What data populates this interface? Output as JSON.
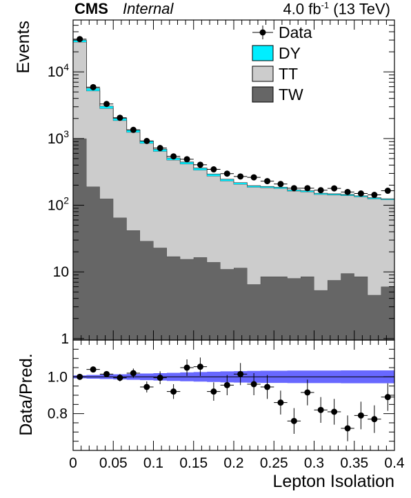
{
  "header": {
    "experiment": "CMS",
    "status": "Internal",
    "lumi_value": "4.0 fb",
    "lumi_exp": "-1",
    "energy": "(13 TeV)"
  },
  "chart_data": [
    {
      "type": "bar",
      "stacked": true,
      "y_scale": "log",
      "ylabel": "Events",
      "xlim": [
        0,
        0.4
      ],
      "ylim": [
        0.95,
        60000
      ],
      "ytick_labels": [
        "1",
        "10",
        "10^2",
        "10^3",
        "10^4"
      ],
      "bin_edges": [
        0,
        0.0167,
        0.0333,
        0.05,
        0.0667,
        0.0833,
        0.1,
        0.1167,
        0.1333,
        0.15,
        0.1667,
        0.1833,
        0.2,
        0.2167,
        0.2333,
        0.25,
        0.2667,
        0.2833,
        0.3,
        0.3167,
        0.3333,
        0.35,
        0.3667,
        0.3833,
        0.4
      ],
      "series": [
        {
          "name": "TW",
          "color": "#666666",
          "values": [
            1000,
            190,
            125,
            65,
            42,
            29,
            23,
            17,
            15.5,
            16.5,
            14,
            11,
            11.5,
            6.5,
            8.5,
            8.5,
            8,
            8.5,
            5.3,
            7.5,
            9.5,
            8.5,
            4.5,
            6
          ]
        },
        {
          "name": "TT",
          "color": "#cccccc",
          "values": [
            27000,
            5000,
            2700,
            1800,
            1200,
            820,
            620,
            460,
            400,
            320,
            260,
            220,
            195,
            180,
            175,
            170,
            155,
            150,
            140,
            135,
            130,
            125,
            120,
            115
          ]
        },
        {
          "name": "DY",
          "color": "#00eeff",
          "values": [
            2000,
            500,
            250,
            150,
            100,
            70,
            50,
            35,
            30,
            25,
            20,
            15,
            12,
            10,
            8,
            8,
            7,
            7,
            6,
            6,
            6,
            5,
            5,
            4
          ]
        }
      ],
      "data": {
        "name": "Data",
        "x": [
          0.0083,
          0.025,
          0.0417,
          0.0583,
          0.075,
          0.0917,
          0.1083,
          0.125,
          0.1417,
          0.1583,
          0.175,
          0.1917,
          0.2083,
          0.225,
          0.2417,
          0.2583,
          0.275,
          0.2917,
          0.3083,
          0.325,
          0.3417,
          0.3583,
          0.375,
          0.3917
        ],
        "y": [
          31000,
          5900,
          3300,
          2050,
          1350,
          920,
          720,
          540,
          490,
          405,
          345,
          298,
          270,
          262,
          230,
          208,
          180,
          180,
          168,
          179,
          158,
          150,
          143,
          165
        ]
      },
      "legend": [
        "Data",
        "DY",
        "TT",
        "TW"
      ],
      "legend_position": "top-right"
    },
    {
      "type": "scatter",
      "ylabel": "Data/Pred.",
      "xlabel": "Lepton Isolation",
      "xlim": [
        0,
        0.4
      ],
      "ylim": [
        0.6,
        1.2
      ],
      "xtick_labels": [
        "0",
        "0.05",
        "0.1",
        "0.15",
        "0.2",
        "0.25",
        "0.3",
        "0.35",
        "0.4"
      ],
      "ytick_labels": [
        "0.8",
        "1.0"
      ],
      "x": [
        0.0083,
        0.025,
        0.0417,
        0.0583,
        0.075,
        0.0917,
        0.1083,
        0.125,
        0.1417,
        0.1583,
        0.175,
        0.1917,
        0.2083,
        0.225,
        0.2417,
        0.2583,
        0.275,
        0.2917,
        0.3083,
        0.325,
        0.3417,
        0.3583,
        0.375,
        0.3917
      ],
      "ratio": [
        1.0,
        1.04,
        1.015,
        0.995,
        1.02,
        0.945,
        0.995,
        0.92,
        1.05,
        1.055,
        0.92,
        0.955,
        1.015,
        0.96,
        0.945,
        0.86,
        0.76,
        0.915,
        0.82,
        0.81,
        0.72,
        0.79,
        0.77,
        0.89
      ],
      "ratio_err": [
        0.01,
        0.01,
        0.015,
        0.02,
        0.025,
        0.03,
        0.035,
        0.04,
        0.045,
        0.05,
        0.05,
        0.055,
        0.06,
        0.06,
        0.065,
        0.065,
        0.07,
        0.07,
        0.07,
        0.07,
        0.07,
        0.075,
        0.075,
        0.075
      ],
      "band_halfwidth": [
        0.008,
        0.01,
        0.012,
        0.014,
        0.016,
        0.018,
        0.02,
        0.022,
        0.024,
        0.026,
        0.028,
        0.03,
        0.031,
        0.032,
        0.033,
        0.033,
        0.034,
        0.034,
        0.034,
        0.034,
        0.035,
        0.035,
        0.035,
        0.035
      ],
      "band_color": "#4d4dff"
    }
  ]
}
